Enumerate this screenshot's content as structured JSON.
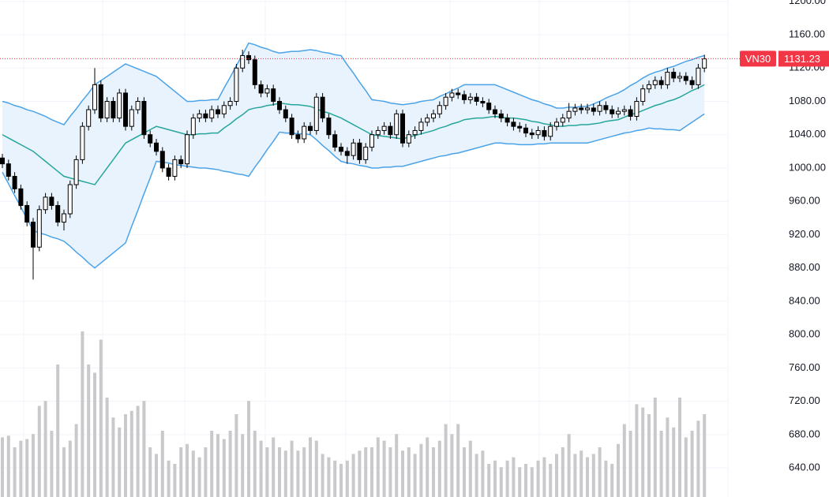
{
  "chart_data": {
    "type": "candlestick",
    "symbol": "VN30",
    "last_price": 1131.23,
    "ylim": [
      605.0,
      1201.7
    ],
    "yticks": [
      {
        "value": 640,
        "label": "640.00"
      },
      {
        "value": 680,
        "label": "680.00"
      },
      {
        "value": 720,
        "label": "720.00"
      },
      {
        "value": 760,
        "label": "760.00"
      },
      {
        "value": 800,
        "label": "800.00"
      },
      {
        "value": 840,
        "label": "840.00"
      },
      {
        "value": 880,
        "label": "880.00"
      },
      {
        "value": 920,
        "label": "920.00"
      },
      {
        "value": 960,
        "label": "960.00"
      },
      {
        "value": 1000,
        "label": "1000.00"
      },
      {
        "value": 1040,
        "label": "1040.00"
      },
      {
        "value": 1080,
        "label": "1080.00"
      },
      {
        "value": 1120,
        "label": "1120.00"
      },
      {
        "value": 1160,
        "label": "1160.00"
      },
      {
        "value": 1200,
        "label": "1200.00"
      }
    ],
    "grid": true,
    "up_color": "#ffffff",
    "down_color": "#000000",
    "open": [
      1012,
      1005,
      990,
      975,
      955,
      935,
      905,
      950,
      965,
      955,
      935,
      945,
      980,
      1010,
      1050,
      1070,
      1100,
      1060,
      1080,
      1060,
      1090,
      1050,
      1070,
      1080,
      1040,
      1030,
      1020,
      1000,
      990,
      1010,
      1005,
      1040,
      1060,
      1065,
      1060,
      1070,
      1065,
      1075,
      1080,
      1120,
      1135,
      1130,
      1100,
      1090,
      1095,
      1080,
      1070,
      1060,
      1040,
      1035,
      1050,
      1045,
      1085,
      1060,
      1040,
      1025,
      1020,
      1015,
      1030,
      1010,
      1025,
      1040,
      1045,
      1050,
      1040,
      1065,
      1030,
      1040,
      1045,
      1055,
      1060,
      1065,
      1075,
      1085,
      1090,
      1088,
      1082,
      1085,
      1080,
      1078,
      1070,
      1065,
      1060,
      1055,
      1050,
      1048,
      1042,
      1040,
      1045,
      1038,
      1050,
      1055,
      1060,
      1068,
      1072,
      1070,
      1072,
      1068,
      1075,
      1070,
      1065,
      1068,
      1070,
      1062,
      1080,
      1095,
      1100,
      1105,
      1100,
      1115,
      1108,
      1110,
      1105,
      1100,
      1120
    ],
    "high": [
      1017,
      1010,
      995,
      980,
      960,
      940,
      955,
      970,
      970,
      960,
      950,
      985,
      1015,
      1055,
      1075,
      1120,
      1105,
      1085,
      1085,
      1095,
      1095,
      1075,
      1085,
      1085,
      1045,
      1035,
      1025,
      1005,
      1015,
      1015,
      1045,
      1065,
      1070,
      1070,
      1075,
      1075,
      1080,
      1085,
      1125,
      1142,
      1140,
      1135,
      1105,
      1100,
      1100,
      1085,
      1075,
      1065,
      1045,
      1055,
      1055,
      1090,
      1090,
      1065,
      1045,
      1030,
      1025,
      1035,
      1035,
      1030,
      1045,
      1050,
      1055,
      1055,
      1070,
      1070,
      1045,
      1050,
      1060,
      1065,
      1070,
      1080,
      1090,
      1095,
      1095,
      1093,
      1090,
      1090,
      1085,
      1083,
      1075,
      1070,
      1065,
      1060,
      1055,
      1053,
      1047,
      1050,
      1050,
      1055,
      1060,
      1065,
      1078,
      1077,
      1077,
      1077,
      1077,
      1080,
      1080,
      1075,
      1073,
      1075,
      1075,
      1085,
      1100,
      1105,
      1110,
      1110,
      1120,
      1120,
      1115,
      1115,
      1110,
      1125,
      1136
    ],
    "low": [
      1000,
      985,
      970,
      950,
      930,
      866,
      900,
      945,
      950,
      930,
      925,
      940,
      975,
      1005,
      1045,
      1065,
      1055,
      1055,
      1055,
      1055,
      1045,
      1045,
      1065,
      1035,
      1025,
      1015,
      995,
      985,
      985,
      1000,
      1000,
      1035,
      1055,
      1055,
      1055,
      1060,
      1060,
      1070,
      1075,
      1115,
      1125,
      1095,
      1085,
      1085,
      1075,
      1065,
      1055,
      1035,
      1030,
      1030,
      1040,
      1040,
      1055,
      1035,
      1020,
      1015,
      1005,
      1010,
      1005,
      1005,
      1020,
      1035,
      1040,
      1035,
      1035,
      1025,
      1025,
      1035,
      1040,
      1050,
      1055,
      1060,
      1070,
      1080,
      1083,
      1077,
      1077,
      1075,
      1073,
      1065,
      1060,
      1055,
      1050,
      1045,
      1043,
      1037,
      1035,
      1035,
      1033,
      1033,
      1045,
      1050,
      1055,
      1063,
      1065,
      1065,
      1063,
      1063,
      1065,
      1060,
      1060,
      1063,
      1057,
      1057,
      1075,
      1090,
      1095,
      1095,
      1095,
      1103,
      1103,
      1100,
      1095,
      1095,
      1115
    ],
    "close": [
      1005,
      990,
      975,
      955,
      935,
      905,
      950,
      965,
      955,
      935,
      945,
      980,
      1010,
      1050,
      1070,
      1100,
      1060,
      1080,
      1060,
      1090,
      1050,
      1070,
      1080,
      1040,
      1030,
      1020,
      1000,
      990,
      1010,
      1005,
      1040,
      1060,
      1065,
      1060,
      1070,
      1065,
      1075,
      1080,
      1120,
      1135,
      1130,
      1100,
      1090,
      1095,
      1080,
      1070,
      1060,
      1040,
      1035,
      1050,
      1045,
      1085,
      1060,
      1040,
      1025,
      1020,
      1015,
      1030,
      1010,
      1025,
      1040,
      1045,
      1050,
      1040,
      1065,
      1030,
      1040,
      1045,
      1055,
      1060,
      1065,
      1075,
      1085,
      1090,
      1088,
      1082,
      1085,
      1080,
      1078,
      1070,
      1065,
      1060,
      1055,
      1050,
      1048,
      1042,
      1040,
      1045,
      1038,
      1050,
      1055,
      1060,
      1068,
      1072,
      1070,
      1072,
      1068,
      1075,
      1070,
      1065,
      1068,
      1070,
      1062,
      1080,
      1095,
      1100,
      1105,
      1100,
      1115,
      1108,
      1110,
      1105,
      1100,
      1120,
      1131
    ],
    "band_fill": "#e9f3fd",
    "bands": [
      {
        "color": "#4aa3e8",
        "values": [
          1080,
          1078,
          1075,
          1073,
          1070,
          1068,
          1065,
          1062,
          1058,
          1055,
          1052,
          1062,
          1071,
          1081,
          1090,
          1100,
          1105,
          1110,
          1115,
          1120,
          1125,
          1122,
          1119,
          1116,
          1113,
          1110,
          1104,
          1098,
          1092,
          1086,
          1080,
          1080,
          1081,
          1081,
          1082,
          1082,
          1096,
          1109,
          1123,
          1136,
          1150,
          1148,
          1145,
          1143,
          1140,
          1138,
          1139,
          1140,
          1140,
          1141,
          1142,
          1141,
          1139,
          1138,
          1136,
          1135,
          1124,
          1114,
          1103,
          1093,
          1082,
          1081,
          1080,
          1078,
          1077,
          1076,
          1077,
          1078,
          1080,
          1081,
          1082,
          1086,
          1089,
          1093,
          1096,
          1100,
          1100,
          1100,
          1100,
          1100,
          1100,
          1097,
          1094,
          1091,
          1088,
          1085,
          1082,
          1080,
          1077,
          1075,
          1072,
          1072,
          1073,
          1073,
          1074,
          1074,
          1077,
          1080,
          1084,
          1087,
          1090,
          1094,
          1099,
          1103,
          1108,
          1112,
          1115,
          1117,
          1120,
          1122,
          1125,
          1128,
          1130,
          1133,
          1135
        ]
      },
      {
        "color": "#26a69a",
        "values": [
          1040,
          1036,
          1032,
          1028,
          1024,
          1020,
          1014,
          1008,
          1002,
          996,
          990,
          988,
          986,
          984,
          982,
          980,
          990,
          1000,
          1010,
          1020,
          1030,
          1034,
          1038,
          1042,
          1046,
          1050,
          1048,
          1046,
          1044,
          1042,
          1040,
          1040,
          1041,
          1041,
          1042,
          1042,
          1048,
          1053,
          1059,
          1064,
          1070,
          1072,
          1073,
          1075,
          1076,
          1078,
          1077,
          1076,
          1076,
          1075,
          1074,
          1071,
          1068,
          1066,
          1063,
          1060,
          1056,
          1052,
          1048,
          1044,
          1040,
          1039,
          1038,
          1037,
          1036,
          1035,
          1037,
          1039,
          1041,
          1043,
          1045,
          1048,
          1050,
          1053,
          1055,
          1058,
          1059,
          1060,
          1060,
          1061,
          1062,
          1061,
          1060,
          1060,
          1059,
          1058,
          1056,
          1055,
          1053,
          1052,
          1050,
          1050,
          1051,
          1051,
          1052,
          1052,
          1053,
          1054,
          1056,
          1057,
          1058,
          1061,
          1064,
          1066,
          1069,
          1072,
          1075,
          1077,
          1080,
          1082,
          1085,
          1089,
          1093,
          1096,
          1100
        ]
      },
      {
        "color": "#4aa3e8",
        "values": [
          995,
          981,
          967,
          953,
          939,
          925,
          922,
          920,
          917,
          915,
          912,
          906,
          899,
          893,
          886,
          880,
          886,
          892,
          898,
          904,
          910,
          930,
          949,
          969,
          988,
          1008,
          1007,
          1006,
          1004,
          1003,
          1002,
          1001,
          1000,
          1000,
          999,
          998,
          996,
          995,
          993,
          992,
          990,
          1001,
          1011,
          1022,
          1032,
          1043,
          1042,
          1042,
          1041,
          1041,
          1040,
          1034,
          1027,
          1021,
          1014,
          1008,
          1006,
          1005,
          1003,
          1002,
          1000,
          1000,
          1001,
          1001,
          1002,
          1002,
          1004,
          1006,
          1008,
          1010,
          1012,
          1014,
          1015,
          1017,
          1018,
          1020,
          1022,
          1024,
          1026,
          1028,
          1030,
          1030,
          1029,
          1029,
          1028,
          1028,
          1028,
          1029,
          1029,
          1030,
          1030,
          1030,
          1030,
          1030,
          1030,
          1030,
          1032,
          1034,
          1036,
          1038,
          1040,
          1042,
          1043,
          1045,
          1046,
          1048,
          1047,
          1047,
          1046,
          1046,
          1045,
          1050,
          1055,
          1060,
          1065
        ]
      }
    ],
    "volume": {
      "color": "#c9c9cc",
      "values": [
        36,
        37,
        30,
        34,
        35,
        38,
        55,
        58,
        40,
        80,
        30,
        34,
        44,
        100,
        80,
        75,
        95,
        60,
        48,
        42,
        50,
        52,
        55,
        58,
        30,
        26,
        40,
        22,
        20,
        30,
        32,
        28,
        24,
        30,
        40,
        38,
        35,
        40,
        50,
        38,
        58,
        40,
        34,
        30,
        36,
        30,
        28,
        34,
        28,
        30,
        36,
        34,
        26,
        24,
        22,
        20,
        22,
        26,
        28,
        30,
        30,
        36,
        34,
        30,
        38,
        28,
        30,
        26,
        32,
        36,
        30,
        34,
        44,
        38,
        44,
        30,
        34,
        26,
        28,
        20,
        22,
        18,
        22,
        24,
        18,
        20,
        18,
        22,
        24,
        20,
        26,
        30,
        38,
        26,
        28,
        24,
        26,
        30,
        22,
        20,
        32,
        44,
        40,
        56,
        54,
        50,
        60,
        40,
        48,
        42,
        60,
        36,
        40,
        46,
        50
      ]
    },
    "price_line_color": "#f23645"
  }
}
